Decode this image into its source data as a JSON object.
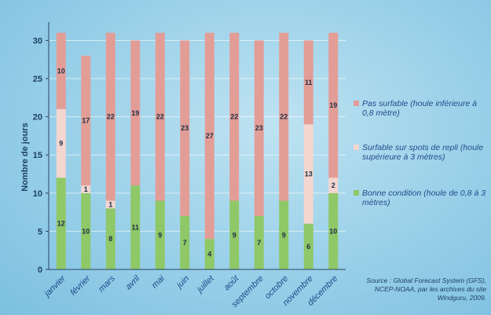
{
  "chart_data": {
    "type": "bar",
    "stacked": true,
    "categories": [
      "janvier",
      "février",
      "mars",
      "avril",
      "mai",
      "juin",
      "juillet",
      "août",
      "septembre",
      "octobre",
      "novembre",
      "décembre"
    ],
    "series": [
      {
        "name": "Bonne condition (houle de 0,8 à 3 mètres)",
        "color": "#8fc867",
        "values": [
          12,
          10,
          8,
          11,
          9,
          7,
          4,
          9,
          7,
          9,
          6,
          10
        ]
      },
      {
        "name": "Surfable sur spots de repli (houle supérieure à 3 mètres)",
        "color": "#f3d6d0",
        "values": [
          9,
          1,
          1,
          0,
          0,
          0,
          0,
          0,
          0,
          0,
          13,
          2
        ]
      },
      {
        "name": "Pas surfable (houle inférieure à 0,8 mètre)",
        "color": "#e39d97",
        "values": [
          10,
          17,
          22,
          19,
          22,
          23,
          27,
          22,
          23,
          22,
          11,
          19
        ]
      }
    ],
    "ylabel": "Nombre de jours",
    "xlabel": "",
    "ylim": [
      0,
      32
    ],
    "yticks": [
      0,
      5,
      10,
      15,
      20,
      25,
      30
    ],
    "grid": true,
    "legend": "right"
  },
  "legend_order": [
    2,
    1,
    0
  ],
  "source": "Source : Global Forecast System (GFS), NCEP-NOAA, par les archives du site Windguru, 2009."
}
